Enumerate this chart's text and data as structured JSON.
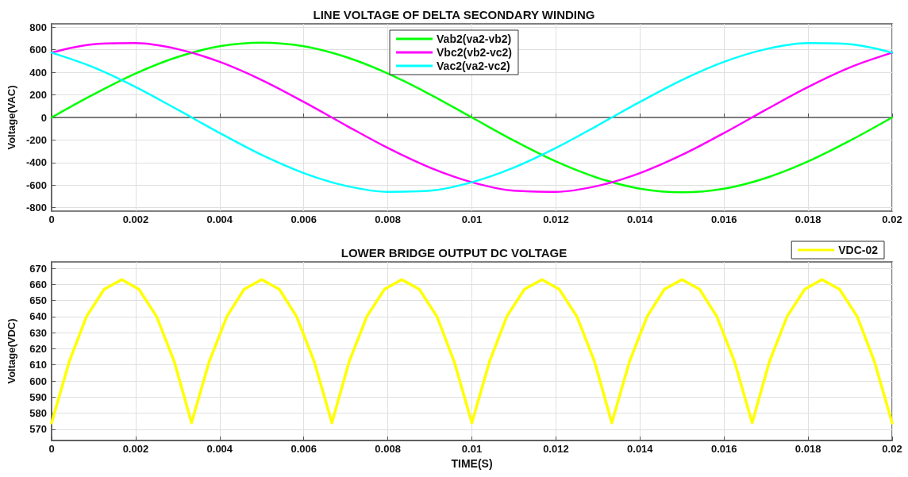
{
  "chart_data": [
    {
      "type": "line",
      "title": "LINE VOLTAGE OF DELTA SECONDARY WINDING",
      "ylabel": "Voltage(VAC)",
      "x": [
        0,
        0.001,
        0.002,
        0.003,
        0.004,
        0.005,
        0.006,
        0.007,
        0.008,
        0.009,
        0.01,
        0.011,
        0.012,
        0.013,
        0.014,
        0.015,
        0.016,
        0.017,
        0.018,
        0.019,
        0.02
      ],
      "series": [
        {
          "name": "Vab2(va2-vb2)",
          "color": "#00ff00",
          "values": [
            0,
            205,
            390,
            536,
            631,
            663,
            631,
            536,
            390,
            205,
            0,
            -205,
            -390,
            -536,
            -631,
            -663,
            -631,
            -536,
            -390,
            -205,
            0
          ]
        },
        {
          "name": "Vbc2(vb2-vc2)",
          "color": "#ff00ff",
          "values": [
            574,
            649,
            659,
            606,
            493,
            332,
            138,
            -69,
            -270,
            -444,
            -574,
            -649,
            -659,
            -606,
            -493,
            -332,
            -138,
            69,
            270,
            444,
            574
          ]
        },
        {
          "name": "Vac2(va2-vc2)",
          "color": "#00ffff",
          "values": [
            574,
            444,
            270,
            69,
            -138,
            -332,
            -493,
            -606,
            -659,
            -649,
            -574,
            -444,
            -270,
            -69,
            138,
            332,
            493,
            606,
            659,
            649,
            574
          ]
        }
      ],
      "xlim": [
        0,
        0.02
      ],
      "xticks": [
        0,
        0.002,
        0.004,
        0.006,
        0.008,
        0.01,
        0.012,
        0.014,
        0.016,
        0.018,
        0.02
      ],
      "ylim": [
        -830,
        830
      ],
      "yticks": [
        -800,
        -600,
        -400,
        -200,
        0,
        200,
        400,
        600,
        800
      ],
      "grid": true,
      "legend": "top",
      "marker": "none",
      "line_style": "solid"
    },
    {
      "type": "line",
      "title": "LOWER BRIDGE OUTPUT DC VOLTAGE",
      "xlabel": "TIME(S)",
      "ylabel": "Voltage(VDC)",
      "x": [
        0,
        0.00042,
        0.00083,
        0.00125,
        0.00167,
        0.00208,
        0.0025,
        0.00292,
        0.00333,
        0.00375,
        0.00417,
        0.00458,
        0.005,
        0.00542,
        0.00583,
        0.00625,
        0.00667,
        0.00708,
        0.0075,
        0.00792,
        0.00833,
        0.00875,
        0.00917,
        0.00958,
        0.01,
        0.01042,
        0.01083,
        0.01125,
        0.01167,
        0.01208,
        0.0125,
        0.01292,
        0.01333,
        0.01375,
        0.01417,
        0.01458,
        0.015,
        0.01542,
        0.01583,
        0.01625,
        0.01667,
        0.01708,
        0.0175,
        0.01792,
        0.01833,
        0.01875,
        0.01917,
        0.01958,
        0.02
      ],
      "series": [
        {
          "name": "VDC-02",
          "color": "#ffff00",
          "values": [
            574,
            612,
            640,
            657,
            663,
            657,
            640,
            612,
            574,
            612,
            640,
            657,
            663,
            657,
            640,
            612,
            574,
            612,
            640,
            657,
            663,
            657,
            640,
            612,
            574,
            612,
            640,
            657,
            663,
            657,
            640,
            612,
            574,
            612,
            640,
            657,
            663,
            657,
            640,
            612,
            574,
            612,
            640,
            657,
            663,
            657,
            640,
            612,
            574
          ]
        }
      ],
      "xlim": [
        0,
        0.02
      ],
      "xticks": [
        0,
        0.002,
        0.004,
        0.006,
        0.008,
        0.01,
        0.012,
        0.014,
        0.016,
        0.018,
        0.02
      ],
      "ylim": [
        563,
        674
      ],
      "yticks": [
        570,
        580,
        590,
        600,
        610,
        620,
        630,
        640,
        650,
        660,
        670
      ],
      "grid": true,
      "legend": "top right",
      "marker": "none",
      "line_style": "solid"
    }
  ]
}
